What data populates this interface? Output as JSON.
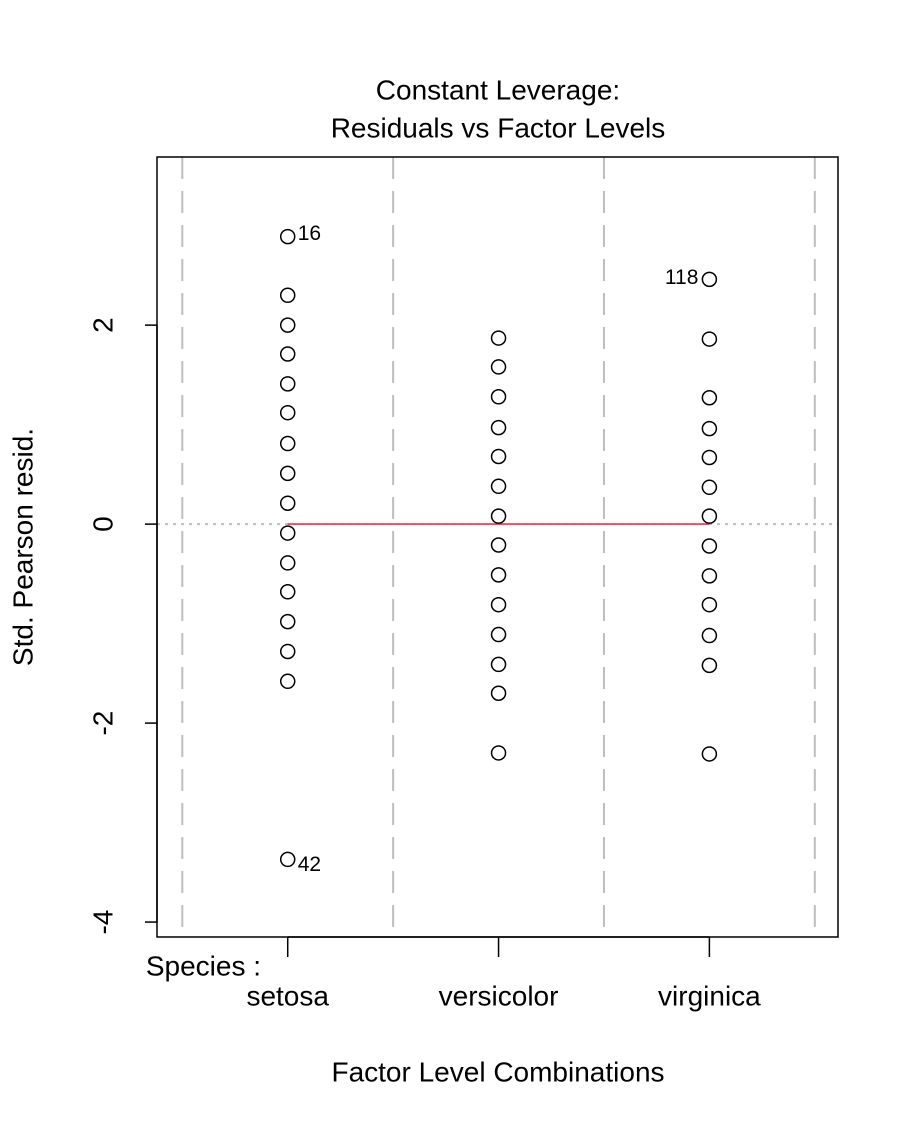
{
  "chart_data": {
    "type": "factor-scatter",
    "title": "Constant Leverage:",
    "subtitle": "Residuals vs Factor Levels",
    "x_label": "Factor Level Combinations",
    "y_label": "Std. Pearson resid.",
    "factor_name": "Species :",
    "categories": [
      "setosa",
      "versicolor",
      "virginica"
    ],
    "xlim": [
      0.38,
      3.61
    ],
    "ylim": [
      -4.15,
      3.69
    ],
    "yticks": [
      -4,
      -2,
      0,
      2
    ],
    "vlines": [
      0.5,
      1.5,
      2.5,
      3.5
    ],
    "hline": 0,
    "fit_color": "#DF536B",
    "groups": [
      {
        "values": [
          2.89,
          2.3,
          2.0,
          1.71,
          1.41,
          1.12,
          0.81,
          0.51,
          0.21,
          -0.09,
          -0.39,
          -0.68,
          -0.98,
          -1.28,
          -1.58,
          -3.37
        ],
        "point_labels": [
          "16",
          null,
          null,
          null,
          null,
          null,
          null,
          null,
          null,
          null,
          null,
          null,
          null,
          null,
          null,
          "42"
        ]
      },
      {
        "values": [
          1.87,
          1.58,
          1.28,
          0.97,
          0.68,
          0.38,
          0.08,
          -0.21,
          -0.51,
          -0.81,
          -1.11,
          -1.41,
          -1.7,
          -2.3
        ],
        "point_labels": [
          null,
          null,
          null,
          null,
          null,
          null,
          null,
          null,
          null,
          null,
          null,
          null,
          null,
          null
        ]
      },
      {
        "values": [
          2.46,
          1.86,
          1.27,
          0.96,
          0.67,
          0.37,
          0.08,
          -0.22,
          -0.52,
          -0.81,
          -1.12,
          -1.42,
          -2.31
        ],
        "point_labels": [
          "118",
          null,
          null,
          null,
          null,
          null,
          null,
          null,
          null,
          null,
          null,
          null,
          null
        ]
      }
    ]
  }
}
